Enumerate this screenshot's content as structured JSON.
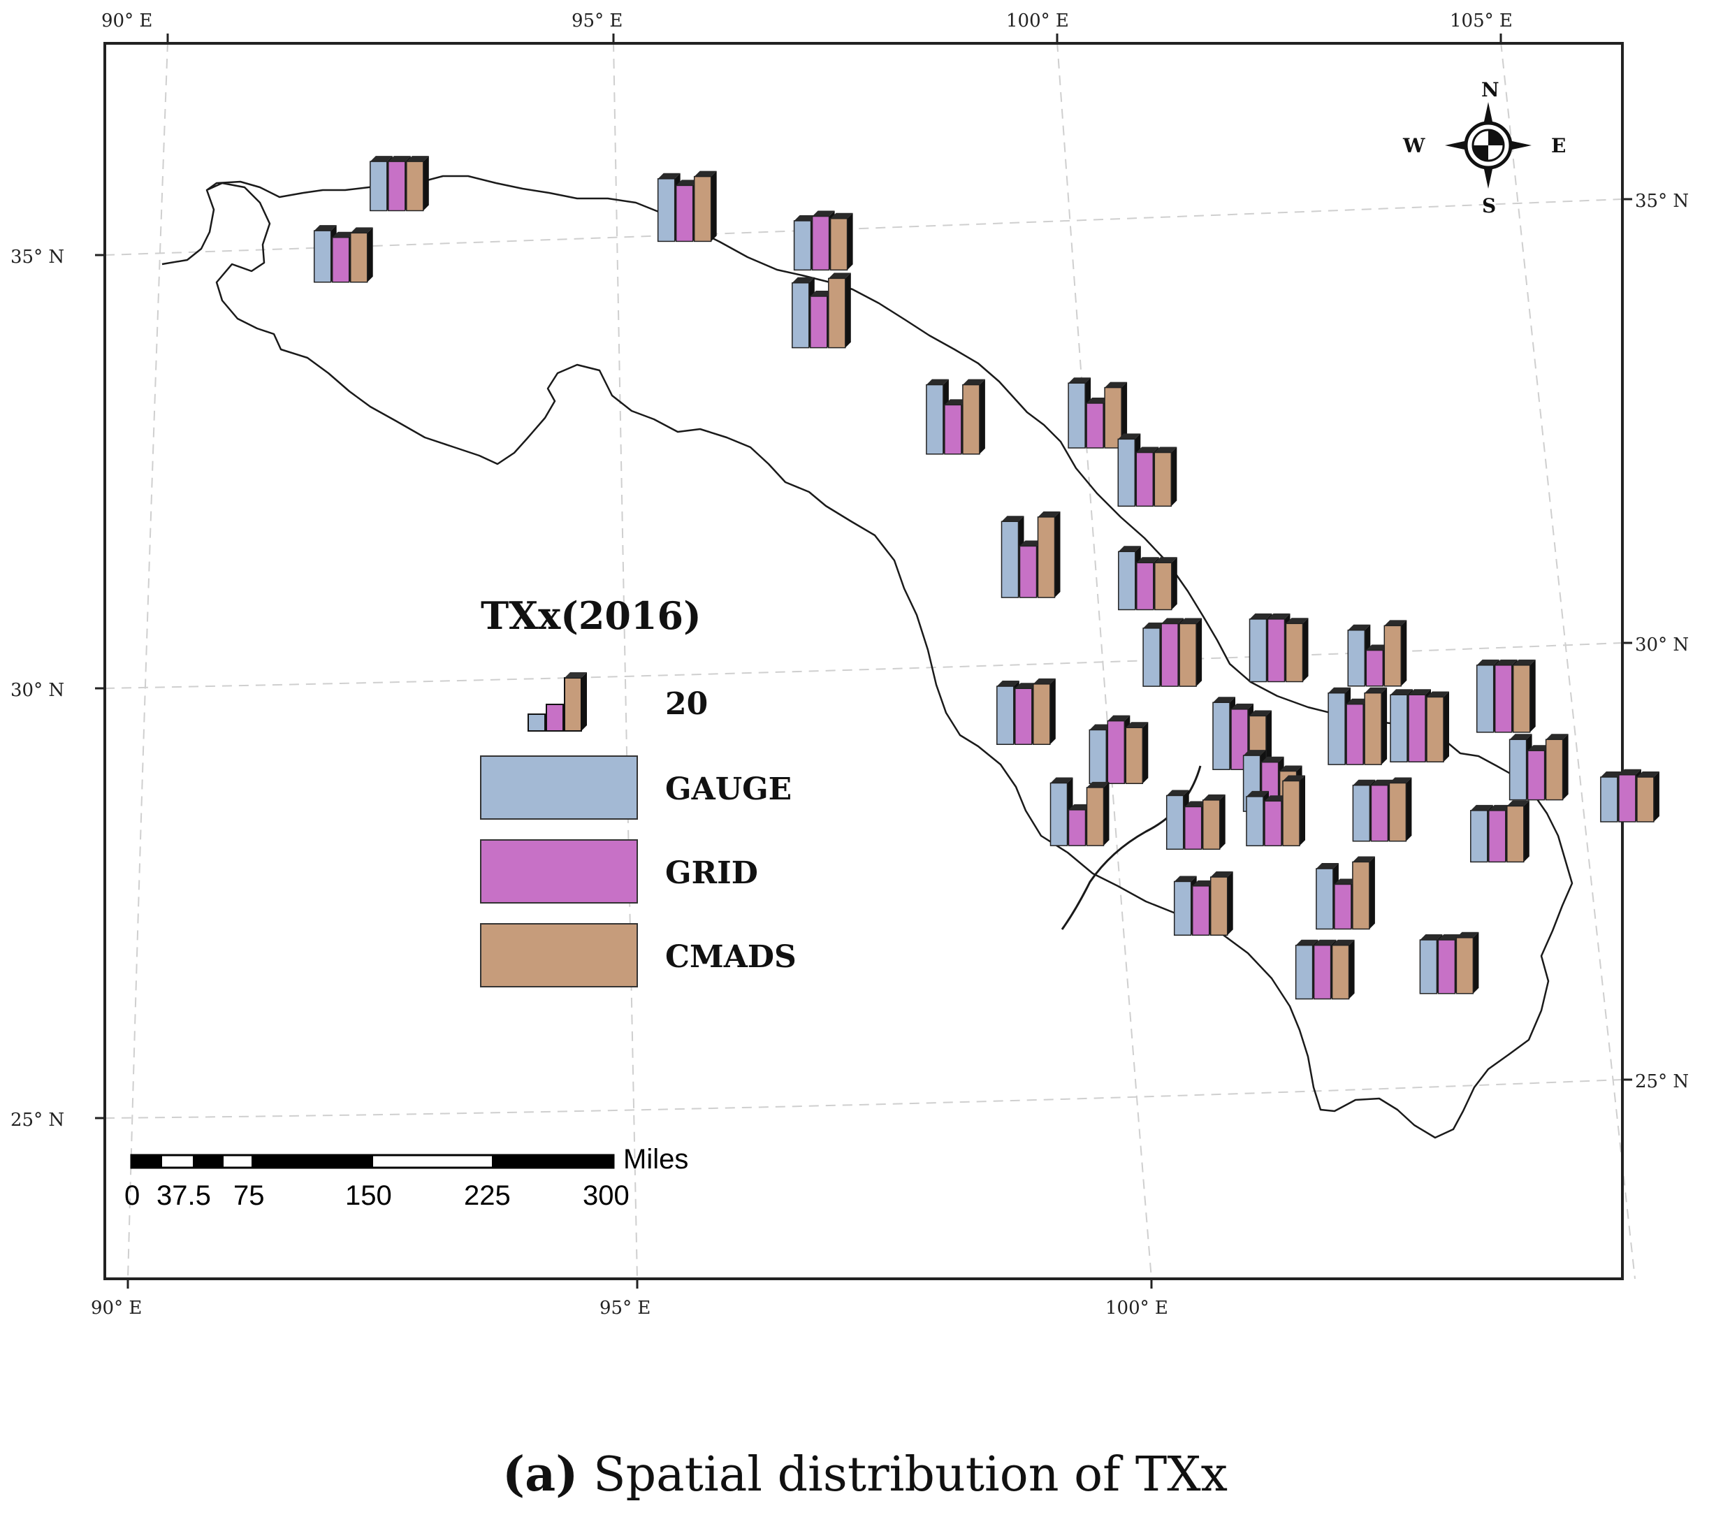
{
  "map": {
    "lon_labels_top": [
      "90° E",
      "95° E",
      "100° E",
      "105° E"
    ],
    "lon_labels_bottom": [
      "90° E",
      "95° E",
      "100° E"
    ],
    "lat_labels_left": [
      "35° N",
      "30° N",
      "25° N"
    ],
    "lat_labels_right": [
      "35° N",
      "30° N",
      "25° N"
    ]
  },
  "compass": {
    "n": "N",
    "s": "S",
    "e": "E",
    "w": "W"
  },
  "legend": {
    "title": "TXx(2016)",
    "size_label": "20",
    "items": [
      {
        "label": "GAUGE",
        "color": "#a3b9d4"
      },
      {
        "label": "GRID",
        "color": "#c771c6"
      },
      {
        "label": "CMADS",
        "color": "#c69c7b"
      }
    ]
  },
  "scale_bar": {
    "unit": "Miles",
    "ticks": [
      "0",
      "37.5",
      "75",
      "150",
      "225",
      "300"
    ]
  },
  "caption": {
    "letter": "(a)",
    "text": " Spatial distribution of TXx"
  },
  "chart_data": {
    "type": "bar",
    "title": "TXx(2016)",
    "series_names": [
      "GAUGE",
      "GRID",
      "CMADS"
    ],
    "note": "bar values",
    "stations": [
      {
        "lon": 92.6,
        "lat": 35.4,
        "values": [
          22,
          22,
          22
        ]
      },
      {
        "lon": 91.9,
        "lat": 34.6,
        "values": [
          23,
          20,
          22
        ]
      },
      {
        "lon": 95.8,
        "lat": 34.9,
        "values": [
          28,
          25,
          29
        ]
      },
      {
        "lon": 97.3,
        "lat": 34.5,
        "values": [
          22,
          24,
          23
        ]
      },
      {
        "lon": 97.2,
        "lat": 33.6,
        "values": [
          29,
          23,
          31
        ]
      },
      {
        "lon": 98.6,
        "lat": 32.3,
        "values": [
          31,
          22,
          31
        ]
      },
      {
        "lon": 100.2,
        "lat": 32.3,
        "values": [
          29,
          20,
          27
        ]
      },
      {
        "lon": 100.7,
        "lat": 31.6,
        "values": [
          30,
          24,
          24
        ]
      },
      {
        "lon": 99.3,
        "lat": 30.6,
        "values": [
          34,
          23,
          36
        ]
      },
      {
        "lon": 100.6,
        "lat": 30.4,
        "values": [
          26,
          21,
          21
        ]
      },
      {
        "lon": 100.8,
        "lat": 29.5,
        "values": [
          26,
          28,
          28
        ]
      },
      {
        "lon": 102.0,
        "lat": 29.5,
        "values": [
          28,
          28,
          26
        ]
      },
      {
        "lon": 103.1,
        "lat": 29.4,
        "values": [
          25,
          16,
          27
        ]
      },
      {
        "lon": 104.5,
        "lat": 28.8,
        "values": [
          30,
          30,
          30
        ]
      },
      {
        "lon": 99.1,
        "lat": 28.9,
        "values": [
          26,
          25,
          27
        ]
      },
      {
        "lon": 100.1,
        "lat": 28.4,
        "values": [
          24,
          28,
          25
        ]
      },
      {
        "lon": 101.5,
        "lat": 28.5,
        "values": [
          30,
          27,
          24
        ]
      },
      {
        "lon": 102.8,
        "lat": 28.5,
        "values": [
          32,
          27,
          32
        ]
      },
      {
        "lon": 103.5,
        "lat": 28.5,
        "values": [
          30,
          30,
          29
        ]
      },
      {
        "lon": 101.8,
        "lat": 28.0,
        "values": [
          25,
          22,
          18
        ]
      },
      {
        "lon": 104.8,
        "lat": 28.0,
        "values": [
          27,
          22,
          27
        ]
      },
      {
        "lon": 99.6,
        "lat": 27.7,
        "values": [
          28,
          16,
          26
        ]
      },
      {
        "lon": 100.9,
        "lat": 27.6,
        "values": [
          24,
          19,
          22
        ]
      },
      {
        "lon": 101.8,
        "lat": 27.6,
        "values": [
          22,
          20,
          29
        ]
      },
      {
        "lon": 103.0,
        "lat": 27.6,
        "values": [
          25,
          25,
          26
        ]
      },
      {
        "lon": 104.3,
        "lat": 27.3,
        "values": [
          23,
          23,
          25
        ]
      },
      {
        "lon": 105.8,
        "lat": 27.7,
        "values": [
          20,
          21,
          20
        ]
      },
      {
        "lon": 100.9,
        "lat": 26.6,
        "values": [
          24,
          22,
          26
        ]
      },
      {
        "lon": 102.5,
        "lat": 26.6,
        "values": [
          27,
          20,
          30
        ]
      },
      {
        "lon": 102.2,
        "lat": 25.8,
        "values": [
          24,
          24,
          24
        ]
      },
      {
        "lon": 103.6,
        "lat": 25.8,
        "values": [
          24,
          24,
          25
        ]
      }
    ]
  }
}
